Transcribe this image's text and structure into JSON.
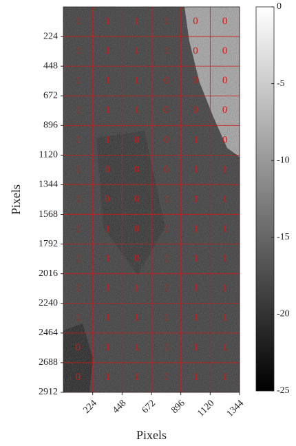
{
  "chart_data": {
    "type": "heatmap",
    "xlabel": "Pixels",
    "ylabel": "Pixels",
    "xlim": [
      0,
      1344
    ],
    "xticks": [
      224,
      448,
      672,
      896,
      1120,
      1344
    ],
    "ylim": [
      0,
      2912
    ],
    "y_inverted": true,
    "yticks": [
      224,
      448,
      672,
      896,
      1120,
      1344,
      1568,
      1792,
      2016,
      2240,
      2464,
      2688,
      2912
    ],
    "grid": true,
    "grid_color": "#d01818",
    "label_color": "#d01818",
    "colormap": "gray",
    "cells": [
      [
        1,
        1,
        1,
        1,
        0,
        0
      ],
      [
        1,
        1,
        1,
        1,
        0,
        0
      ],
      [
        1,
        1,
        1,
        0,
        0,
        0
      ],
      [
        1,
        1,
        1,
        0,
        0,
        0
      ],
      [
        1,
        1,
        0,
        0,
        1,
        0
      ],
      [
        1,
        0,
        0,
        0,
        1,
        1
      ],
      [
        1,
        0,
        0,
        1,
        1,
        1
      ],
      [
        1,
        1,
        0,
        1,
        1,
        1
      ],
      [
        1,
        1,
        0,
        1,
        1,
        1
      ],
      [
        1,
        1,
        1,
        1,
        1,
        1
      ],
      [
        1,
        1,
        1,
        1,
        1,
        1
      ],
      [
        0,
        1,
        1,
        1,
        1,
        1
      ],
      [
        0,
        1,
        1,
        1,
        1,
        1
      ]
    ],
    "colorbar": {
      "lim": [
        -25,
        0
      ],
      "ticks": [
        0,
        -5,
        -10,
        -15,
        -20,
        -25
      ]
    }
  }
}
